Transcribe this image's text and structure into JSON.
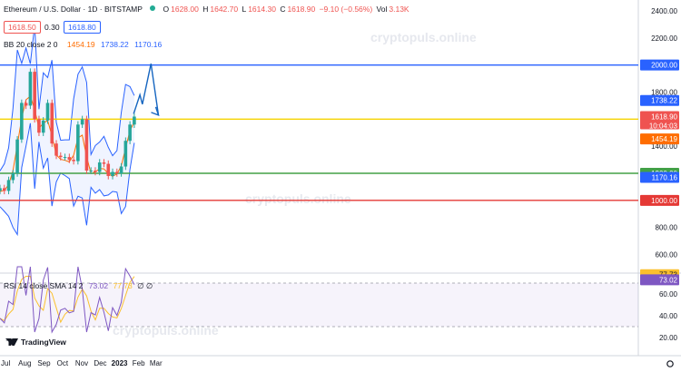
{
  "header": {
    "symbol": "Ethereum / U.S. Dollar · 1D · BITSTAMP",
    "o_label": "O",
    "o": "1628.00",
    "h_label": "H",
    "h": "1642.70",
    "l_label": "L",
    "l": "1614.30",
    "c_label": "C",
    "c": "1618.90",
    "change": "−9.10 (−0.56%)",
    "vol_label": "Vol",
    "vol": "3.13K",
    "sell_price": "1618.50",
    "spread": "0.30",
    "buy_price": "1618.80"
  },
  "bb_legend": {
    "name": "BB 20 close 2 0",
    "basis": "1454.19",
    "upper": "1738.22",
    "lower": "1170.16"
  },
  "rsi_legend": {
    "name": "RSI 14 close SMA 14 2",
    "rsi": "73.02",
    "sma": "77.73",
    "icons": "∅ ∅"
  },
  "watermark": "cryptopuls.online",
  "brand": "TradingView",
  "colors": {
    "up": "#26a69a",
    "down": "#ef5350",
    "bb_band": "#2962ff",
    "bb_basis": "#ff6d00",
    "rsi_line": "#7e57c2",
    "rsi_sma": "#fbc02d",
    "level_blue": "#2962ff",
    "level_yellow": "#f5d300",
    "level_green": "#43a047",
    "level_red": "#e53935"
  },
  "chart_data": [
    {
      "type": "candlestick",
      "title": "Ethereum / U.S. Dollar · 1D · BITSTAMP",
      "ylim": [
        500,
        2400
      ],
      "y_ticks": [
        "2400.00",
        "2200.00",
        "2000.00",
        "1800.00",
        "1600.00",
        "1400.00",
        "1200.00",
        "1000.00",
        "800.00",
        "600.00"
      ],
      "x_ticks": [
        "Jul",
        "Aug",
        "Sep",
        "Oct",
        "Nov",
        "Dec",
        "2023",
        "Feb",
        "Mar"
      ],
      "x": [
        "2022-06-19",
        "2022-06-26",
        "2022-07-03",
        "2022-07-10",
        "2022-07-17",
        "2022-07-24",
        "2022-07-31",
        "2022-08-07",
        "2022-08-14",
        "2022-08-21",
        "2022-08-28",
        "2022-09-04",
        "2022-09-11",
        "2022-09-18",
        "2022-09-25",
        "2022-10-02",
        "2022-10-09",
        "2022-10-16",
        "2022-10-23",
        "2022-10-30",
        "2022-11-06",
        "2022-11-13",
        "2022-11-20",
        "2022-11-27",
        "2022-12-04",
        "2022-12-11",
        "2022-12-18",
        "2022-12-25",
        "2023-01-01",
        "2023-01-08",
        "2023-01-15",
        "2023-01-22"
      ],
      "close": [
        1090,
        1070,
        1150,
        1200,
        1450,
        1720,
        1700,
        1950,
        1600,
        1500,
        1590,
        1720,
        1420,
        1330,
        1320,
        1320,
        1300,
        1290,
        1560,
        1600,
        1220,
        1220,
        1210,
        1280,
        1270,
        1180,
        1210,
        1200,
        1250,
        1440,
        1560,
        1619
      ],
      "price_levels": [
        {
          "value": 2000,
          "label": "2000.00",
          "color": "level_blue"
        },
        {
          "value": 1600,
          "label": "1600.00",
          "color": "level_yellow"
        },
        {
          "value": 1200,
          "label": "1200.00",
          "color": "level_green"
        },
        {
          "value": 1000,
          "label": "1000.00",
          "color": "level_red"
        }
      ],
      "price_tags": [
        {
          "value": 1738.22,
          "label": "1738.22",
          "color": "bb_band"
        },
        {
          "value": 1618.9,
          "label": "1618.90",
          "sublabel": "10:04:03",
          "color": "down"
        },
        {
          "value": 1454.19,
          "label": "1454.19",
          "color": "bb_basis"
        },
        {
          "value": 1170.16,
          "label": "1170.16",
          "color": "bb_band"
        }
      ],
      "projection": {
        "x": [
          "2023-01-24",
          "2023-02-03",
          "2023-02-07",
          "2023-02-21",
          "2023-03-05"
        ],
        "y": [
          1640,
          1780,
          1710,
          2010,
          1630
        ]
      }
    },
    {
      "type": "line",
      "title": "RSI 14 close SMA 14 2",
      "ylim": [
        20,
        90
      ],
      "y_ticks": [
        "80.00",
        "60.00",
        "40.00",
        "20.00"
      ],
      "band": [
        30,
        70
      ],
      "tags": [
        {
          "value": 77.73,
          "label": "77.73",
          "color": "rsi_sma"
        },
        {
          "value": 73.02,
          "label": "73.02",
          "color": "rsi_line"
        }
      ]
    }
  ]
}
